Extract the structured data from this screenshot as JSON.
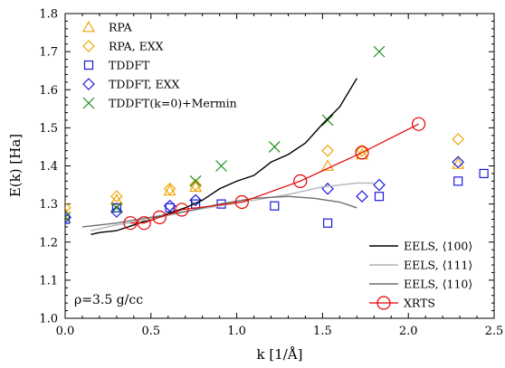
{
  "chart_data": {
    "type": "scatter",
    "xlabel": "k [1/Å]",
    "ylabel": "E(k) [Ha]",
    "xlim": [
      0.0,
      2.5
    ],
    "ylim": [
      1.0,
      1.8
    ],
    "xticks": [
      "0.0",
      "0.5",
      "1.0",
      "1.5",
      "2.0",
      "2.5"
    ],
    "yticks": [
      "1.0",
      "1.1",
      "1.2",
      "1.3",
      "1.4",
      "1.5",
      "1.6",
      "1.7",
      "1.8"
    ],
    "grid": false,
    "annotation": "ρ=3.5 g/cc",
    "legend_upper_placement": "top-left",
    "legend_lower_placement": "bottom-right",
    "series": [
      {
        "name": "RPA",
        "kind": "marker",
        "marker": "triangle",
        "color": "#f0a500",
        "points": [
          [
            0.0,
            1.275
          ],
          [
            0.3,
            1.31
          ],
          [
            0.61,
            1.335
          ],
          [
            0.76,
            1.345
          ],
          [
            1.53,
            1.4
          ],
          [
            1.73,
            1.43
          ],
          [
            2.29,
            1.405
          ]
        ]
      },
      {
        "name": "RPA, EXX",
        "kind": "marker",
        "marker": "diamond",
        "color": "#f0a500",
        "points": [
          [
            0.0,
            1.29
          ],
          [
            0.3,
            1.32
          ],
          [
            0.61,
            1.34
          ],
          [
            0.76,
            1.35
          ],
          [
            1.53,
            1.44
          ],
          [
            1.73,
            1.44
          ],
          [
            2.29,
            1.47
          ]
        ]
      },
      {
        "name": "TDDFT",
        "kind": "marker",
        "marker": "square",
        "color": "#1a1adc",
        "points": [
          [
            0.0,
            1.26
          ],
          [
            0.3,
            1.29
          ],
          [
            0.61,
            1.29
          ],
          [
            0.76,
            1.3
          ],
          [
            0.91,
            1.3
          ],
          [
            1.22,
            1.295
          ],
          [
            1.53,
            1.25
          ],
          [
            1.83,
            1.32
          ],
          [
            2.29,
            1.36
          ],
          [
            2.44,
            1.38
          ]
        ]
      },
      {
        "name": "TDDFT, EXX",
        "kind": "marker",
        "marker": "diamond",
        "color": "#1a1adc",
        "points": [
          [
            0.0,
            1.265
          ],
          [
            0.3,
            1.28
          ],
          [
            0.61,
            1.295
          ],
          [
            0.76,
            1.31
          ],
          [
            1.53,
            1.34
          ],
          [
            1.73,
            1.32
          ],
          [
            1.83,
            1.35
          ],
          [
            2.29,
            1.41
          ]
        ]
      },
      {
        "name": "TDDFT(k=0)+Mermin",
        "kind": "marker",
        "marker": "x",
        "color": "#1f8c1f",
        "points": [
          [
            0.0,
            1.265
          ],
          [
            0.3,
            1.29
          ],
          [
            0.76,
            1.36
          ],
          [
            0.91,
            1.4
          ],
          [
            1.22,
            1.45
          ],
          [
            1.53,
            1.52
          ],
          [
            1.83,
            1.7
          ]
        ]
      },
      {
        "name": "EELS, ⟨100⟩",
        "kind": "line",
        "color": "#000000",
        "width": 1.4,
        "points": [
          [
            0.15,
            1.22
          ],
          [
            0.2,
            1.225
          ],
          [
            0.3,
            1.23
          ],
          [
            0.4,
            1.245
          ],
          [
            0.5,
            1.26
          ],
          [
            0.6,
            1.275
          ],
          [
            0.7,
            1.29
          ],
          [
            0.8,
            1.31
          ],
          [
            0.9,
            1.34
          ],
          [
            1.0,
            1.36
          ],
          [
            1.1,
            1.375
          ],
          [
            1.2,
            1.41
          ],
          [
            1.3,
            1.43
          ],
          [
            1.4,
            1.46
          ],
          [
            1.5,
            1.51
          ],
          [
            1.6,
            1.555
          ],
          [
            1.7,
            1.63
          ]
        ]
      },
      {
        "name": "EELS, ⟨111⟩",
        "kind": "line",
        "color": "#b4b4b4",
        "width": 1.4,
        "points": [
          [
            0.15,
            1.23
          ],
          [
            0.3,
            1.245
          ],
          [
            0.5,
            1.26
          ],
          [
            0.7,
            1.28
          ],
          [
            0.9,
            1.295
          ],
          [
            1.1,
            1.31
          ],
          [
            1.3,
            1.325
          ],
          [
            1.5,
            1.345
          ],
          [
            1.6,
            1.35
          ],
          [
            1.7,
            1.355
          ],
          [
            1.8,
            1.355
          ]
        ]
      },
      {
        "name": "EELS, ⟨110⟩",
        "kind": "line",
        "color": "#6e6e6e",
        "width": 1.4,
        "points": [
          [
            0.1,
            1.24
          ],
          [
            0.3,
            1.25
          ],
          [
            0.5,
            1.265
          ],
          [
            0.7,
            1.28
          ],
          [
            0.9,
            1.3
          ],
          [
            1.1,
            1.315
          ],
          [
            1.3,
            1.32
          ],
          [
            1.45,
            1.315
          ],
          [
            1.6,
            1.305
          ],
          [
            1.7,
            1.29
          ]
        ]
      },
      {
        "name": "XRTS",
        "kind": "line+marker",
        "marker": "circle",
        "color": "#e60000",
        "width": 1.2,
        "points": [
          [
            0.38,
            1.25
          ],
          [
            0.46,
            1.25
          ],
          [
            0.55,
            1.265
          ],
          [
            0.68,
            1.285
          ],
          [
            1.03,
            1.305
          ],
          [
            1.37,
            1.36
          ],
          [
            1.73,
            1.435
          ],
          [
            2.06,
            1.51
          ]
        ]
      }
    ]
  }
}
